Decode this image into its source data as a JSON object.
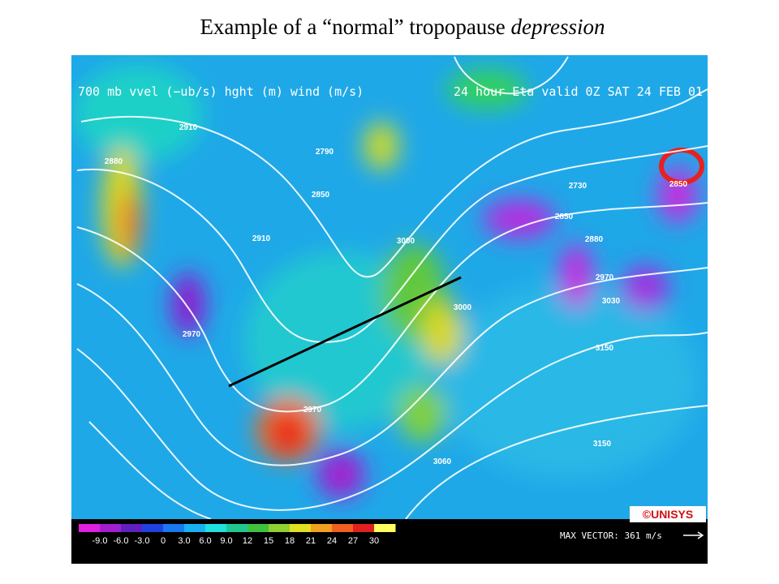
{
  "title": {
    "text": "Example of a “normal” tropopause ",
    "emphasis": "depression"
  },
  "map": {
    "header_left": "700 mb vvel (−ub/s) hght (m) wind (m/s)",
    "header_right": "24 hour Eta valid 0Z SAT 24 FEB 01",
    "colorbar_labels": [
      "-9.0",
      "-6.0",
      "-3.0",
      "0",
      "3.0",
      "6.0",
      "9.0",
      "12",
      "15",
      "18",
      "21",
      "24",
      "27",
      "30"
    ],
    "max_vector": "MAX VECTOR: 361 m/s",
    "credit": "©UNISYS",
    "contour_labels": [
      "2910",
      "2790",
      "2880",
      "2850",
      "2910",
      "3000",
      "2970",
      "2970",
      "3000",
      "3060",
      "3150",
      "3150",
      "2730",
      "2850",
      "2880",
      "2970",
      "3030",
      "2850"
    ]
  }
}
